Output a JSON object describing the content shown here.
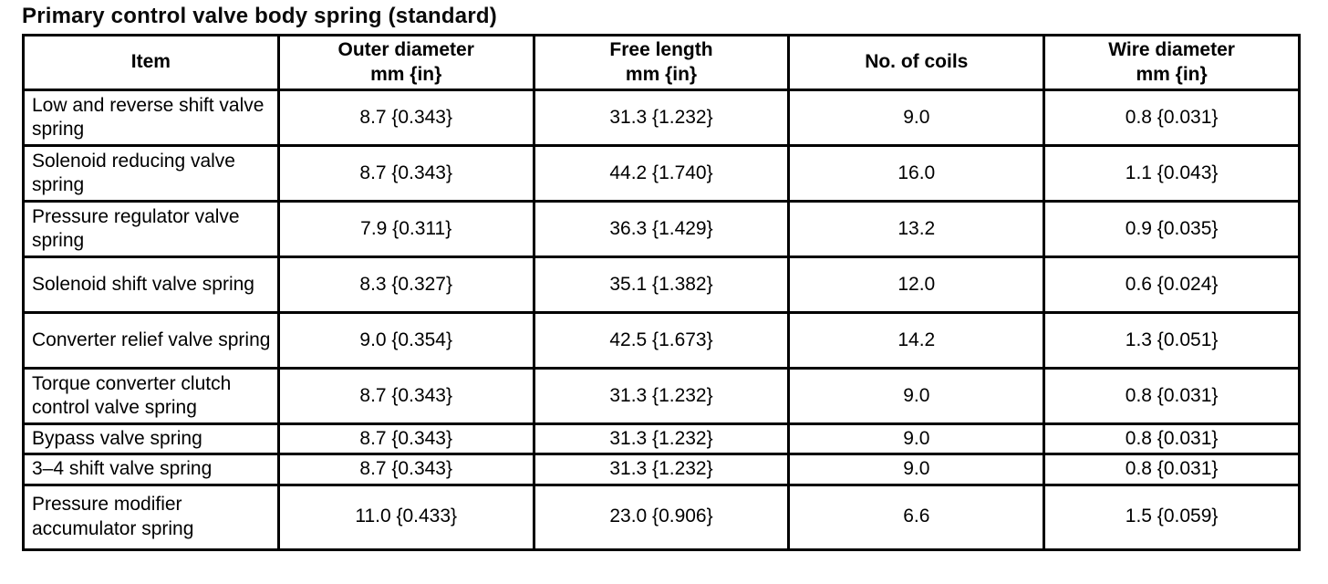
{
  "title": "Primary control valve body spring (standard)",
  "table": {
    "columns": [
      {
        "label": "Item",
        "unit": ""
      },
      {
        "label": "Outer diameter",
        "unit": "mm {in}"
      },
      {
        "label": "Free length",
        "unit": "mm {in}"
      },
      {
        "label": "No. of coils",
        "unit": ""
      },
      {
        "label": "Wire diameter",
        "unit": "mm {in}"
      }
    ],
    "rows": [
      {
        "item": "Low and reverse shift valve spring",
        "outer_diameter": "8.7 {0.343}",
        "free_length": "31.3 {1.232}",
        "no_of_coils": "9.0",
        "wire_diameter": "0.8 {0.031}"
      },
      {
        "item": "Solenoid reducing valve spring",
        "outer_diameter": "8.7 {0.343}",
        "free_length": "44.2 {1.740}",
        "no_of_coils": "16.0",
        "wire_diameter": "1.1 {0.043}"
      },
      {
        "item": "Pressure regulator valve spring",
        "outer_diameter": "7.9 {0.311}",
        "free_length": "36.3 {1.429}",
        "no_of_coils": "13.2",
        "wire_diameter": "0.9 {0.035}"
      },
      {
        "item": "Solenoid shift valve spring",
        "outer_diameter": "8.3 {0.327}",
        "free_length": "35.1 {1.382}",
        "no_of_coils": "12.0",
        "wire_diameter": "0.6 {0.024}"
      },
      {
        "item": "Converter relief valve spring",
        "outer_diameter": "9.0 {0.354}",
        "free_length": "42.5 {1.673}",
        "no_of_coils": "14.2",
        "wire_diameter": "1.3 {0.051}"
      },
      {
        "item": "Torque converter clutch control valve spring",
        "outer_diameter": "8.7 {0.343}",
        "free_length": "31.3 {1.232}",
        "no_of_coils": "9.0",
        "wire_diameter": "0.8 {0.031}"
      },
      {
        "item": "Bypass valve spring",
        "outer_diameter": "8.7 {0.343}",
        "free_length": "31.3 {1.232}",
        "no_of_coils": "9.0",
        "wire_diameter": "0.8 {0.031}"
      },
      {
        "item": "3–4 shift valve spring",
        "outer_diameter": "8.7 {0.343}",
        "free_length": "31.3 {1.232}",
        "no_of_coils": "9.0",
        "wire_diameter": "0.8 {0.031}"
      },
      {
        "item": "Pressure modifier accumulator spring",
        "outer_diameter": "11.0 {0.433}",
        "free_length": "23.0 {0.906}",
        "no_of_coils": "6.6",
        "wire_diameter": "1.5 {0.059}"
      }
    ]
  }
}
